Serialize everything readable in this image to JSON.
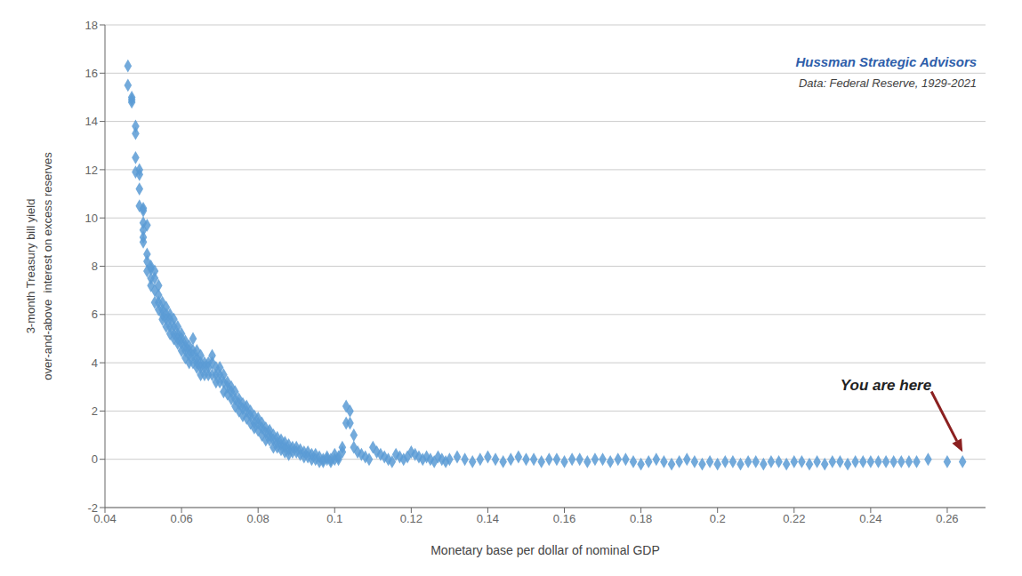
{
  "chart_data": {
    "type": "scatter",
    "title": "Hussman Strategic Advisors",
    "subtitle": "Data: Federal Reserve, 1929-2021",
    "x_label": "Monetary base per dollar of nominal GDP",
    "y_label": "3-month Treasury bill yield\nover-and-above  interest on excess reserves",
    "color": "#5B9BD5",
    "marker": "diamond",
    "grid": true,
    "xlim": [
      0.04,
      0.27
    ],
    "ylim": [
      -2,
      18
    ],
    "xticks": [
      0.04,
      0.06,
      0.08,
      0.1,
      0.12,
      0.14,
      0.16,
      0.18,
      0.2,
      0.22,
      0.24,
      0.26
    ],
    "yticks": [
      -2,
      0,
      2,
      4,
      6,
      8,
      10,
      12,
      14,
      16,
      18
    ],
    "annotations": [
      {
        "text": "You are here",
        "x": 0.264,
        "y": 0.3
      }
    ],
    "x": [
      0.046,
      0.046,
      0.047,
      0.047,
      0.047,
      0.048,
      0.048,
      0.048,
      0.048,
      0.049,
      0.049,
      0.049,
      0.049,
      0.05,
      0.05,
      0.05,
      0.05,
      0.05,
      0.05,
      0.051,
      0.051,
      0.051,
      0.051,
      0.052,
      0.052,
      0.052,
      0.052,
      0.053,
      0.053,
      0.053,
      0.053,
      0.054,
      0.054,
      0.054,
      0.054,
      0.055,
      0.055,
      0.055,
      0.055,
      0.056,
      0.056,
      0.056,
      0.056,
      0.057,
      0.057,
      0.057,
      0.057,
      0.058,
      0.058,
      0.058,
      0.058,
      0.059,
      0.059,
      0.059,
      0.059,
      0.06,
      0.06,
      0.06,
      0.06,
      0.061,
      0.061,
      0.061,
      0.061,
      0.062,
      0.062,
      0.062,
      0.062,
      0.063,
      0.063,
      0.063,
      0.063,
      0.064,
      0.064,
      0.064,
      0.064,
      0.065,
      0.065,
      0.065,
      0.065,
      0.066,
      0.066,
      0.066,
      0.067,
      0.067,
      0.067,
      0.068,
      0.068,
      0.068,
      0.069,
      0.069,
      0.069,
      0.07,
      0.07,
      0.07,
      0.071,
      0.071,
      0.071,
      0.072,
      0.072,
      0.072,
      0.073,
      0.073,
      0.073,
      0.074,
      0.074,
      0.074,
      0.075,
      0.075,
      0.075,
      0.076,
      0.076,
      0.076,
      0.077,
      0.077,
      0.077,
      0.078,
      0.078,
      0.078,
      0.079,
      0.079,
      0.079,
      0.08,
      0.08,
      0.08,
      0.081,
      0.081,
      0.081,
      0.082,
      0.082,
      0.082,
      0.083,
      0.083,
      0.083,
      0.084,
      0.084,
      0.084,
      0.085,
      0.085,
      0.085,
      0.086,
      0.086,
      0.086,
      0.087,
      0.087,
      0.087,
      0.088,
      0.088,
      0.088,
      0.089,
      0.089,
      0.09,
      0.09,
      0.091,
      0.091,
      0.092,
      0.092,
      0.093,
      0.093,
      0.094,
      0.094,
      0.095,
      0.095,
      0.096,
      0.096,
      0.097,
      0.097,
      0.098,
      0.098,
      0.099,
      0.099,
      0.1,
      0.1,
      0.101,
      0.101,
      0.102,
      0.102,
      0.103,
      0.103,
      0.104,
      0.104,
      0.105,
      0.105,
      0.106,
      0.107,
      0.108,
      0.109,
      0.11,
      0.111,
      0.112,
      0.113,
      0.114,
      0.115,
      0.116,
      0.117,
      0.118,
      0.119,
      0.12,
      0.121,
      0.122,
      0.123,
      0.124,
      0.125,
      0.126,
      0.127,
      0.128,
      0.129,
      0.13,
      0.132,
      0.134,
      0.136,
      0.138,
      0.14,
      0.142,
      0.144,
      0.146,
      0.148,
      0.15,
      0.152,
      0.154,
      0.156,
      0.158,
      0.16,
      0.162,
      0.164,
      0.166,
      0.168,
      0.17,
      0.172,
      0.174,
      0.176,
      0.178,
      0.18,
      0.182,
      0.184,
      0.186,
      0.188,
      0.19,
      0.192,
      0.194,
      0.196,
      0.198,
      0.2,
      0.202,
      0.204,
      0.206,
      0.208,
      0.21,
      0.212,
      0.214,
      0.216,
      0.218,
      0.22,
      0.222,
      0.224,
      0.226,
      0.228,
      0.23,
      0.232,
      0.234,
      0.236,
      0.238,
      0.24,
      0.242,
      0.244,
      0.246,
      0.248,
      0.25,
      0.252,
      0.255,
      0.26,
      0.264
    ],
    "values": [
      16.3,
      15.5,
      15.0,
      14.8,
      14.9,
      13.8,
      13.5,
      12.5,
      11.9,
      12.0,
      11.8,
      11.2,
      10.5,
      10.4,
      10.3,
      9.8,
      9.5,
      9.2,
      9.0,
      9.7,
      8.5,
      8.2,
      7.8,
      8.0,
      7.9,
      7.5,
      7.2,
      7.8,
      7.5,
      7.0,
      6.5,
      7.2,
      6.8,
      6.5,
      6.2,
      6.5,
      6.2,
      6.0,
      5.8,
      6.3,
      6.0,
      5.8,
      5.5,
      6.0,
      5.8,
      5.5,
      5.2,
      5.8,
      5.5,
      5.2,
      5.0,
      5.5,
      5.2,
      5.0,
      4.8,
      5.2,
      5.0,
      4.8,
      4.5,
      4.9,
      4.7,
      4.5,
      4.2,
      4.7,
      4.5,
      4.3,
      4.0,
      5.0,
      4.5,
      4.3,
      4.0,
      4.5,
      4.2,
      4.0,
      3.8,
      4.3,
      4.0,
      3.8,
      3.5,
      4.0,
      3.8,
      3.5,
      4.0,
      3.8,
      3.5,
      4.3,
      4.0,
      3.5,
      3.8,
      3.5,
      3.2,
      3.8,
      3.5,
      3.2,
      3.5,
      3.2,
      2.8,
      3.2,
      3.0,
      2.7,
      3.0,
      2.8,
      2.5,
      2.8,
      2.5,
      2.2,
      2.5,
      2.3,
      2.0,
      2.3,
      2.1,
      1.8,
      2.2,
      2.0,
      1.7,
      2.0,
      1.8,
      1.5,
      1.8,
      1.5,
      1.3,
      1.7,
      1.5,
      1.2,
      1.5,
      1.3,
      1.0,
      1.3,
      1.1,
      0.8,
      1.2,
      1.0,
      0.8,
      1.0,
      0.8,
      0.5,
      0.9,
      0.7,
      0.5,
      0.8,
      0.6,
      0.4,
      0.7,
      0.5,
      0.3,
      0.6,
      0.4,
      0.2,
      0.5,
      0.3,
      0.5,
      0.3,
      0.4,
      0.2,
      0.3,
      0.1,
      0.3,
      0.1,
      0.2,
      0.0,
      0.2,
      0.0,
      0.1,
      -0.1,
      0.0,
      -0.1,
      0.1,
      0.0,
      0.0,
      -0.1,
      0.2,
      0.0,
      0.1,
      0.0,
      0.5,
      0.3,
      2.2,
      1.5,
      2.0,
      1.5,
      1.0,
      0.5,
      0.3,
      0.2,
      0.1,
      0.0,
      0.5,
      0.3,
      0.2,
      0.1,
      0.0,
      -0.1,
      0.2,
      0.1,
      0.0,
      0.1,
      0.3,
      0.2,
      0.1,
      0.0,
      0.1,
      0.0,
      -0.1,
      0.1,
      0.0,
      -0.1,
      0.0,
      0.1,
      0.0,
      -0.1,
      0.0,
      0.1,
      0.0,
      -0.1,
      0.0,
      0.1,
      0.0,
      0.0,
      -0.1,
      0.0,
      0.0,
      -0.1,
      0.0,
      0.0,
      -0.1,
      0.0,
      0.0,
      -0.1,
      0.0,
      0.0,
      -0.1,
      -0.2,
      -0.1,
      0.0,
      -0.1,
      -0.2,
      -0.1,
      0.0,
      -0.1,
      -0.2,
      -0.1,
      -0.2,
      -0.1,
      -0.1,
      -0.2,
      -0.1,
      -0.1,
      -0.2,
      -0.1,
      -0.1,
      -0.2,
      -0.1,
      -0.1,
      -0.2,
      -0.1,
      -0.2,
      -0.1,
      -0.1,
      -0.2,
      -0.1,
      -0.1,
      -0.1,
      -0.1,
      -0.1,
      -0.1,
      -0.1,
      -0.1,
      -0.1,
      0.0,
      -0.1,
      -0.1
    ]
  }
}
